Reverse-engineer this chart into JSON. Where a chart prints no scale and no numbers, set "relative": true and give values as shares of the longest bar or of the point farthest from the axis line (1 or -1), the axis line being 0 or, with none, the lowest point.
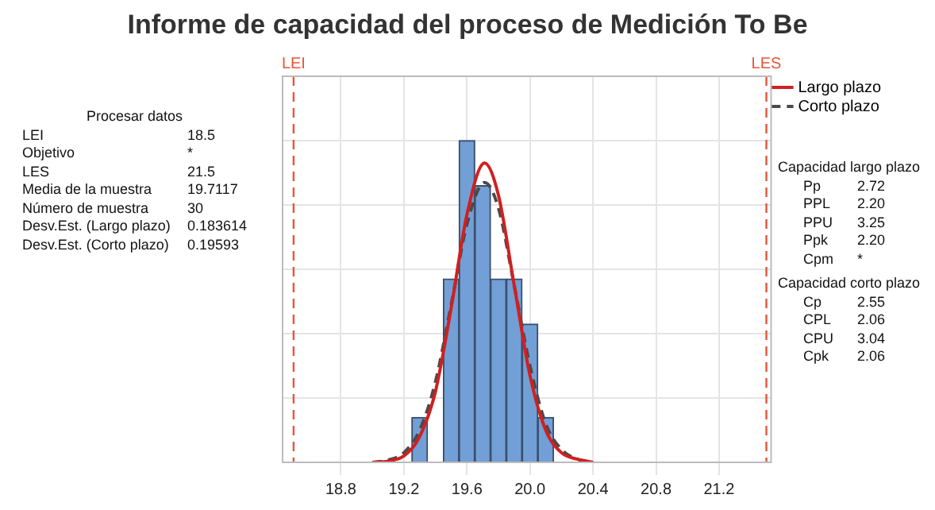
{
  "chart_data": {
    "type": "histogram",
    "title": "Informe de capacidad del proceso de Medición To Be",
    "relative": true,
    "bins": [
      19.25,
      19.35,
      19.45,
      19.55,
      19.65,
      19.75,
      19.85,
      19.95,
      20.05,
      20.15
    ],
    "values": [
      0.14,
      0,
      0.57,
      1,
      0.86,
      0.57,
      0.57,
      0.43,
      0.14
    ],
    "color": "#729fd6",
    "series": [
      {
        "name": "Largo plazo",
        "type": "line",
        "color": "#d02020",
        "line_style": "solid",
        "x": [
          19.0,
          19.1,
          19.2,
          19.3,
          19.4,
          19.5,
          19.6,
          19.7117,
          19.8,
          19.9,
          20.0,
          20.1,
          20.2,
          20.3,
          20.4
        ],
        "values": [
          0.0,
          0.004,
          0.02,
          0.08,
          0.22,
          0.48,
          0.77,
          0.93,
          0.83,
          0.55,
          0.27,
          0.1,
          0.03,
          0.01,
          0.0
        ]
      },
      {
        "name": "Corto plazo",
        "type": "line",
        "color": "#4a4a4a",
        "line_style": "dashed",
        "x": [
          19.0,
          19.1,
          19.2,
          19.3,
          19.4,
          19.5,
          19.6,
          19.7117,
          19.8,
          19.9,
          20.0,
          20.1,
          20.2,
          20.3,
          20.4
        ],
        "values": [
          0.0,
          0.007,
          0.03,
          0.1,
          0.25,
          0.49,
          0.74,
          0.87,
          0.79,
          0.55,
          0.3,
          0.12,
          0.04,
          0.01,
          0.0
        ]
      }
    ],
    "xlim": [
      18.43,
      21.53
    ],
    "xticks": [
      {
        "value": 18.8,
        "label": "18.8"
      },
      {
        "value": 19.2,
        "label": "19.2"
      },
      {
        "value": 19.6,
        "label": "19.6"
      },
      {
        "value": 20.0,
        "label": "20.0"
      },
      {
        "value": 20.4,
        "label": "20.4"
      },
      {
        "value": 20.8,
        "label": "20.8"
      },
      {
        "value": 21.2,
        "label": "21.2"
      }
    ],
    "ref_lines": [
      {
        "axis": "x",
        "value": 18.5,
        "label": "LEI",
        "color": "#e8553a",
        "line_style": "dashed"
      },
      {
        "axis": "x",
        "value": 21.5,
        "label": "LES",
        "color": "#e8553a",
        "line_style": "dashed"
      }
    ],
    "grid": true,
    "legend": "top right",
    "marker": "none",
    "annotations": [
      "Procesar datos",
      "LEI\t18.5",
      "Objetivo\t*",
      "LES\t21.5",
      "Media de la muestra\t19.7117",
      "Número de muestra\t30",
      "Desv.Est. (Largo plazo)\t0.183614",
      "Desv.Est. (Corto plazo)\t0.19593",
      "Capacidad largo plazo",
      "Pp\t2.72",
      "PPL\t2.20",
      "PPU\t3.25",
      "Ppk\t2.20",
      "Cpm\t*",
      "Capacidad corto plazo",
      "Cp\t2.55",
      "CPL\t2.06",
      "CPU\t3.04",
      "Cpk\t2.06"
    ]
  }
}
